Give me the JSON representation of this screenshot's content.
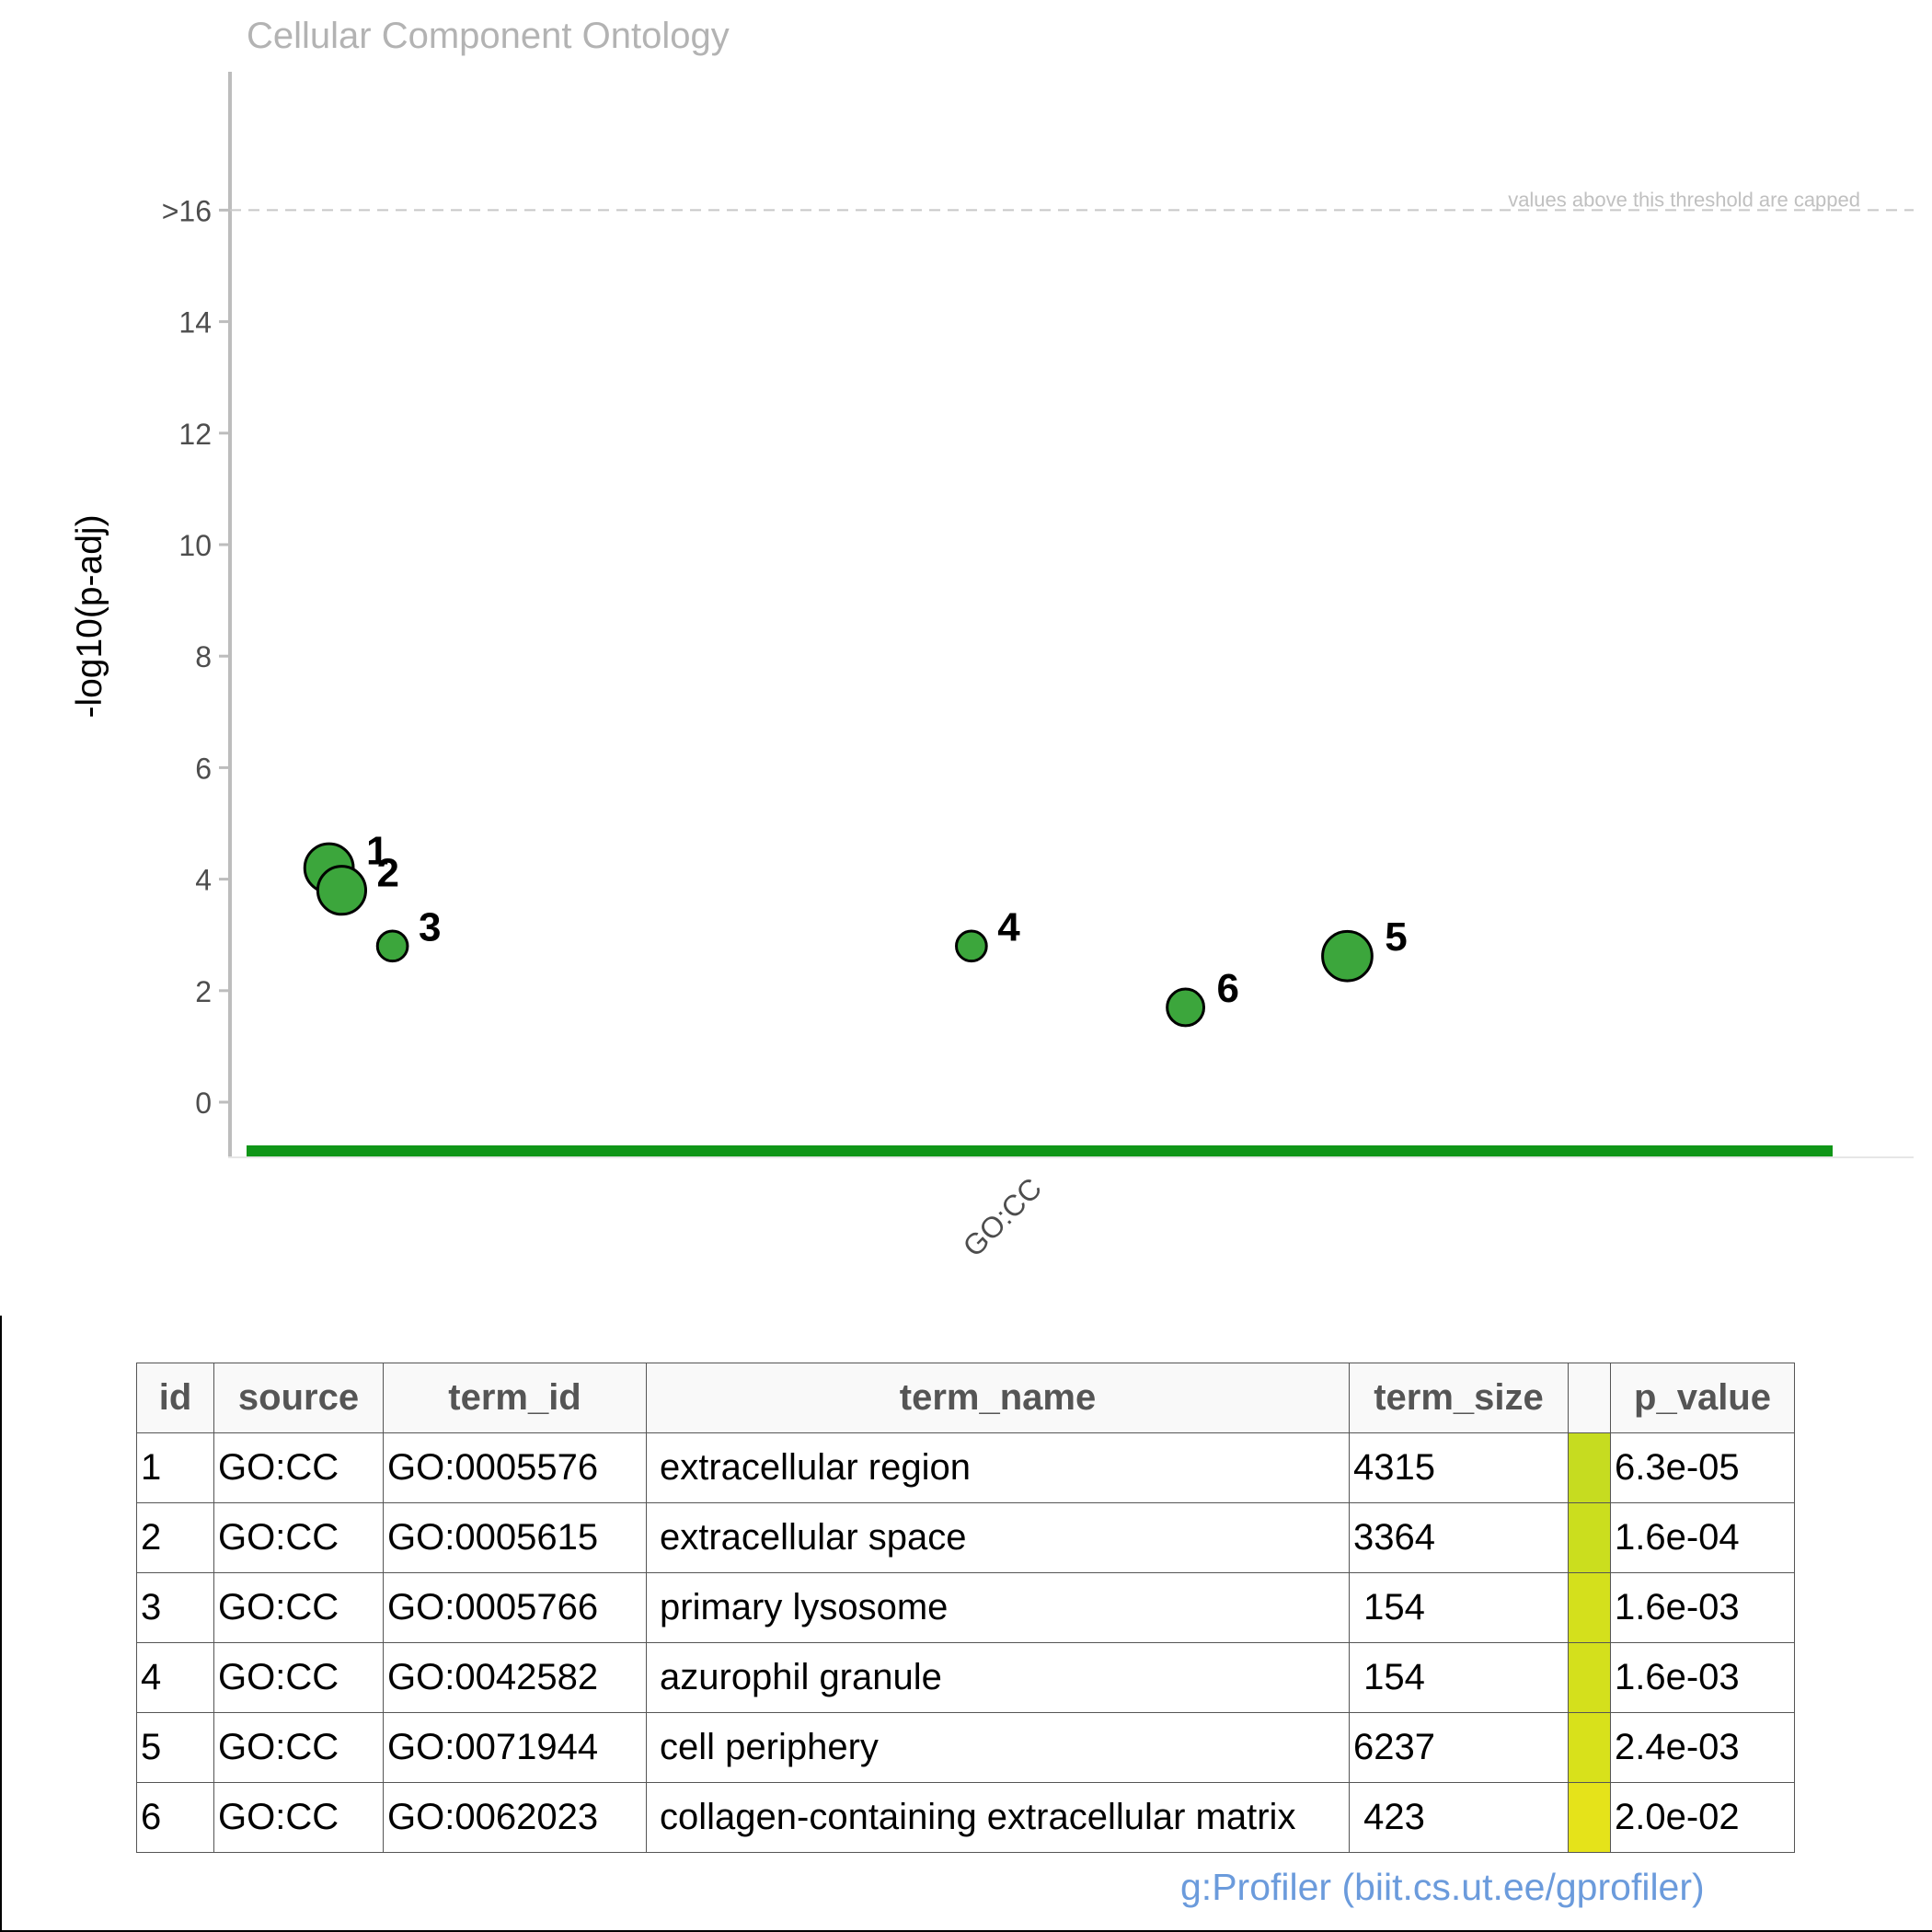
{
  "chart_data": {
    "type": "scatter",
    "title": "Cellular Component Ontology",
    "ylabel": "-log10(p-adj)",
    "xlabel": "",
    "x_categories": [
      "GO:CC"
    ],
    "ylim": [
      -1,
      17
    ],
    "y_ticks": [
      0,
      2,
      4,
      6,
      8,
      10,
      12,
      14,
      16
    ],
    "y_tick_labels": [
      "0",
      "2",
      "4",
      "6",
      "8",
      "10",
      "12",
      "14",
      ">16"
    ],
    "threshold": {
      "value": 16,
      "label": "values above this threshold are capped"
    },
    "source_bar_color": "#109618",
    "point_color": "#3ca63c",
    "points": [
      {
        "id": "1",
        "term_id": "GO:0005576",
        "y": 4.2,
        "term_size": 4315
      },
      {
        "id": "2",
        "term_id": "GO:0005615",
        "y": 3.8,
        "term_size": 3364
      },
      {
        "id": "3",
        "term_id": "GO:0005766",
        "y": 2.8,
        "term_size": 154
      },
      {
        "id": "4",
        "term_id": "GO:0042582",
        "y": 2.8,
        "term_size": 154
      },
      {
        "id": "5",
        "term_id": "GO:0071944",
        "y": 2.62,
        "term_size": 6237
      },
      {
        "id": "6",
        "term_id": "GO:0062023",
        "y": 1.7,
        "term_size": 423
      }
    ]
  },
  "table": {
    "headers": [
      "id",
      "source",
      "term_id",
      "term_name",
      "term_size",
      "",
      "p_value"
    ],
    "rows": [
      {
        "id": "1",
        "source": "GO:CC",
        "term_id": "GO:0005576",
        "term_name": "extracellular region",
        "term_size": "4315",
        "p_value": "6.3e-05",
        "color": "#c6dc20"
      },
      {
        "id": "2",
        "source": "GO:CC",
        "term_id": "GO:0005615",
        "term_name": "extracellular space",
        "term_size": "3364",
        "p_value": "1.6e-04",
        "color": "#cbde1e"
      },
      {
        "id": "3",
        "source": "GO:CC",
        "term_id": "GO:0005766",
        "term_name": "primary lysosome",
        "term_size": " 154",
        "p_value": "1.6e-03",
        "color": "#d4e01c"
      },
      {
        "id": "4",
        "source": "GO:CC",
        "term_id": "GO:0042582",
        "term_name": "azurophil granule",
        "term_size": " 154",
        "p_value": "1.6e-03",
        "color": "#d4e01c"
      },
      {
        "id": "5",
        "source": "GO:CC",
        "term_id": "GO:0071944",
        "term_name": "cell periphery",
        "term_size": "6237",
        "p_value": "2.4e-03",
        "color": "#d8e11b"
      },
      {
        "id": "6",
        "source": "GO:CC",
        "term_id": "GO:0062023",
        "term_name": "collagen-containing extracellular matrix",
        "term_size": " 423",
        "p_value": "2.0e-02",
        "color": "#e5e31a"
      }
    ]
  },
  "footer": "g:Profiler (biit.cs.ut.ee/gprofiler)"
}
